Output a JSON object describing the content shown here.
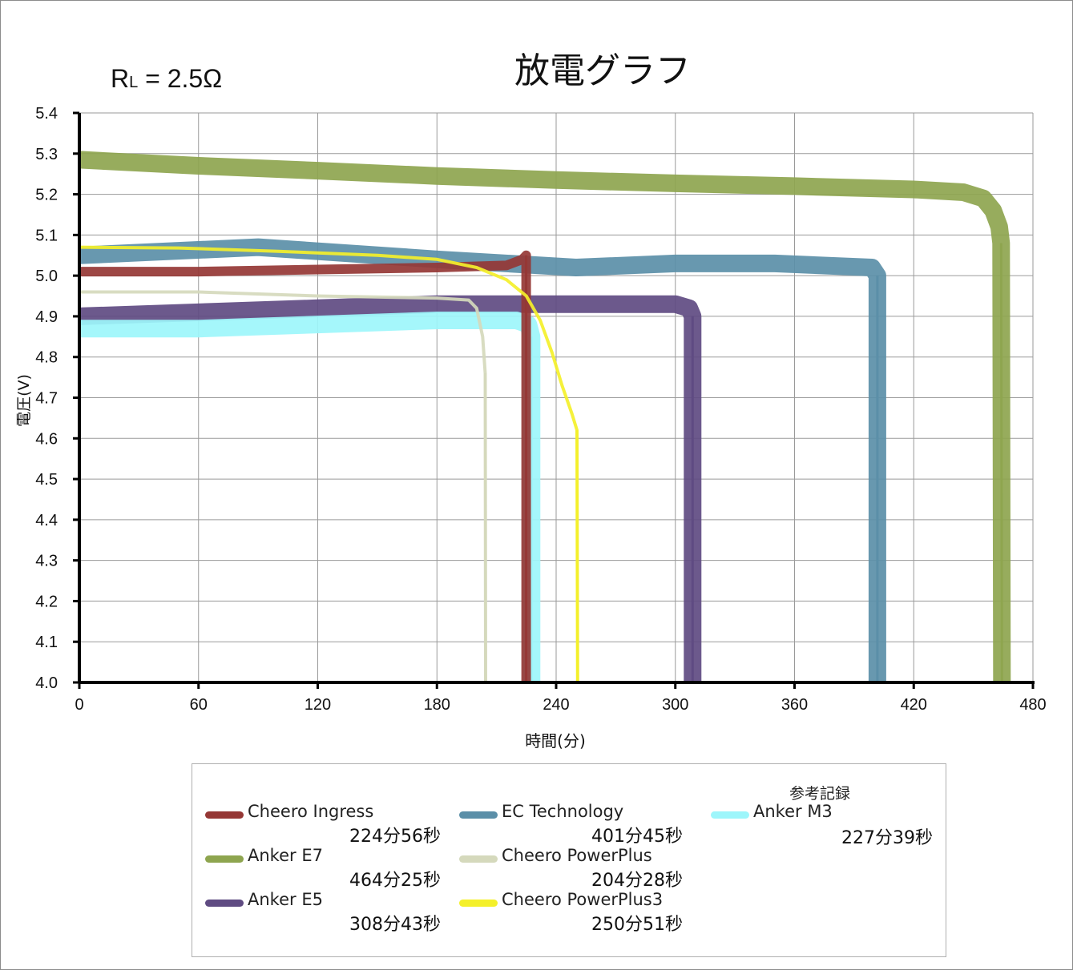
{
  "chart_data": {
    "type": "line",
    "title": "放電グラフ",
    "subtitle": {
      "base": "R",
      "sub": "L",
      "rest": " = 2.5Ω"
    },
    "xlabel": "時間(分)",
    "ylabel": "電圧(V)",
    "xlim": [
      0,
      480
    ],
    "ylim": [
      4.0,
      5.4
    ],
    "x_ticks": [
      "0",
      "60",
      "120",
      "180",
      "240",
      "300",
      "360",
      "420",
      "480"
    ],
    "y_ticks": [
      "4.0",
      "4.1",
      "4.2",
      "4.3",
      "4.4",
      "4.5",
      "4.6",
      "4.7",
      "4.8",
      "4.9",
      "5.0",
      "5.1",
      "5.2",
      "5.3",
      "5.4"
    ],
    "grid": true,
    "legend_placement": "bottom",
    "legend_note": "参考記録",
    "series": [
      {
        "name": "Cheero Ingress",
        "duration": "224分56秒",
        "color": "#953735",
        "points": [
          [
            0,
            5.01
          ],
          [
            60,
            5.01
          ],
          [
            120,
            5.015
          ],
          [
            180,
            5.02
          ],
          [
            215,
            5.025
          ],
          [
            223,
            5.04
          ],
          [
            224.9,
            5.05
          ],
          [
            224.9,
            4.0
          ]
        ]
      },
      {
        "name": "EC Technology",
        "duration": "401分45秒",
        "color": "#5b8fa8",
        "points": [
          [
            0,
            5.05
          ],
          [
            90,
            5.07
          ],
          [
            180,
            5.04
          ],
          [
            250,
            5.02
          ],
          [
            300,
            5.03
          ],
          [
            350,
            5.03
          ],
          [
            399,
            5.02
          ],
          [
            401.7,
            5.0
          ],
          [
            401.7,
            4.0
          ]
        ]
      },
      {
        "name": "Cheero PowerPlus3",
        "duration": "250分51秒",
        "color": "#f4f02a",
        "points": [
          [
            0,
            5.07
          ],
          [
            50,
            5.068
          ],
          [
            100,
            5.06
          ],
          [
            150,
            5.05
          ],
          [
            180,
            5.04
          ],
          [
            200,
            5.02
          ],
          [
            215,
            4.99
          ],
          [
            225,
            4.95
          ],
          [
            232,
            4.89
          ],
          [
            238,
            4.81
          ],
          [
            243,
            4.73
          ],
          [
            248,
            4.66
          ],
          [
            250.5,
            4.62
          ],
          [
            250.8,
            4.0
          ]
        ]
      },
      {
        "name": "Anker E7",
        "duration": "464分25秒",
        "color": "#8ea54f",
        "points": [
          [
            0,
            5.285
          ],
          [
            60,
            5.27
          ],
          [
            120,
            5.258
          ],
          [
            180,
            5.245
          ],
          [
            240,
            5.235
          ],
          [
            300,
            5.227
          ],
          [
            360,
            5.22
          ],
          [
            420,
            5.212
          ],
          [
            445,
            5.205
          ],
          [
            455,
            5.19
          ],
          [
            460,
            5.16
          ],
          [
            463,
            5.12
          ],
          [
            464,
            5.08
          ],
          [
            464.4,
            4.0
          ]
        ]
      },
      {
        "name": "Cheero PowerPlus",
        "duration": "204分28秒",
        "color": "#d5d9bc",
        "points": [
          [
            0,
            4.96
          ],
          [
            60,
            4.96
          ],
          [
            120,
            4.95
          ],
          [
            180,
            4.945
          ],
          [
            196,
            4.94
          ],
          [
            200,
            4.92
          ],
          [
            203,
            4.85
          ],
          [
            204.3,
            4.76
          ],
          [
            204.5,
            4.0
          ]
        ]
      },
      {
        "name": "Anker M3",
        "duration": "227分39秒",
        "color": "#9df6fb",
        "points": [
          [
            0,
            4.87
          ],
          [
            60,
            4.87
          ],
          [
            120,
            4.88
          ],
          [
            180,
            4.89
          ],
          [
            220,
            4.89
          ],
          [
            226,
            4.88
          ],
          [
            227.6,
            4.85
          ],
          [
            227.6,
            4.0
          ]
        ]
      },
      {
        "name": "Anker E5",
        "duration": "308分43秒",
        "color": "#5f4b82",
        "points": [
          [
            0,
            4.9
          ],
          [
            60,
            4.91
          ],
          [
            120,
            4.92
          ],
          [
            180,
            4.93
          ],
          [
            240,
            4.93
          ],
          [
            300,
            4.93
          ],
          [
            307,
            4.92
          ],
          [
            308.7,
            4.9
          ],
          [
            308.7,
            4.0
          ]
        ]
      }
    ]
  },
  "legend_order": [
    0,
    3,
    6,
    1,
    4,
    2,
    5
  ]
}
